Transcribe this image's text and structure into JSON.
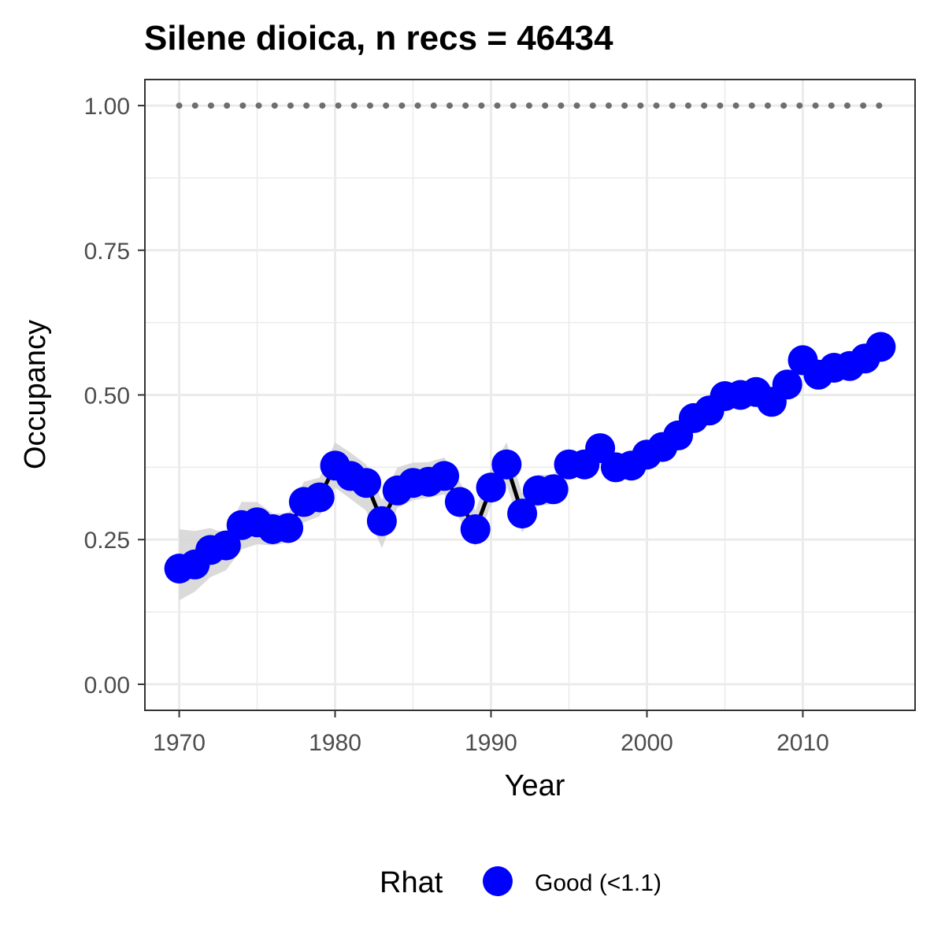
{
  "chart_data": {
    "type": "line",
    "title": "Silene dioica, n recs = 46434",
    "xlabel": "Year",
    "ylabel": "Occupancy",
    "xlim": [
      1967.8,
      2017.2
    ],
    "ylim": [
      -0.045,
      1.045
    ],
    "x_ticks": [
      1970,
      1980,
      1990,
      2000,
      2010
    ],
    "x_tick_labels": [
      "1970",
      "1980",
      "1990",
      "2000",
      "2010"
    ],
    "y_ticks": [
      0,
      0.25,
      0.5,
      0.75,
      1.0
    ],
    "y_tick_labels": [
      "0.00",
      "0.25",
      "0.50",
      "0.75",
      "1.00"
    ],
    "grid": true,
    "x": [
      1970,
      1971,
      1972,
      1973,
      1974,
      1975,
      1976,
      1977,
      1978,
      1979,
      1980,
      1981,
      1982,
      1983,
      1984,
      1985,
      1986,
      1987,
      1988,
      1989,
      1990,
      1991,
      1992,
      1993,
      1994,
      1995,
      1996,
      1997,
      1998,
      1999,
      2000,
      2001,
      2002,
      2003,
      2004,
      2005,
      2006,
      2007,
      2008,
      2009,
      2010,
      2011,
      2012,
      2013,
      2014,
      2015
    ],
    "series": [
      {
        "values": [
          0.2,
          0.207,
          0.232,
          0.24,
          0.275,
          0.28,
          0.268,
          0.27,
          0.315,
          0.323,
          0.378,
          0.36,
          0.348,
          0.282,
          0.335,
          0.348,
          0.35,
          0.36,
          0.315,
          0.268,
          0.34,
          0.38,
          0.295,
          0.335,
          0.337,
          0.38,
          0.38,
          0.408,
          0.375,
          0.378,
          0.397,
          0.41,
          0.43,
          0.46,
          0.473,
          0.498,
          0.5,
          0.505,
          0.488,
          0.518,
          0.56,
          0.535,
          0.547,
          0.55,
          0.563,
          0.583
        ],
        "lower": [
          0.145,
          0.16,
          0.185,
          0.197,
          0.233,
          0.242,
          0.24,
          0.245,
          0.28,
          0.29,
          0.34,
          0.32,
          0.3,
          0.235,
          0.305,
          0.318,
          0.322,
          0.328,
          0.285,
          0.238,
          0.31,
          0.345,
          0.262,
          0.308,
          0.312,
          0.358,
          0.36,
          0.385,
          0.355,
          0.36,
          0.38,
          0.394,
          0.415,
          0.445,
          0.458,
          0.483,
          0.486,
          0.492,
          0.474,
          0.503,
          0.545,
          0.52,
          0.533,
          0.537,
          0.55,
          0.568
        ],
        "upper": [
          0.268,
          0.265,
          0.27,
          0.26,
          0.315,
          0.315,
          0.295,
          0.295,
          0.35,
          0.357,
          0.418,
          0.4,
          0.38,
          0.318,
          0.375,
          0.383,
          0.384,
          0.392,
          0.35,
          0.3,
          0.372,
          0.418,
          0.33,
          0.362,
          0.362,
          0.402,
          0.4,
          0.43,
          0.396,
          0.396,
          0.414,
          0.426,
          0.446,
          0.476,
          0.489,
          0.514,
          0.514,
          0.518,
          0.503,
          0.534,
          0.575,
          0.55,
          0.562,
          0.564,
          0.577,
          0.598
        ],
        "color": "#0000ff",
        "line_color": "#000000",
        "ribbon_color": "#d3d3d3"
      }
    ],
    "reference_line": {
      "y": 1.0,
      "style": "dotted",
      "color": "#6e6e6e"
    },
    "legend": {
      "title": "Rhat",
      "position": "bottom",
      "entries": [
        {
          "label": "Good (<1.1)",
          "color": "#0000ff"
        }
      ]
    }
  }
}
